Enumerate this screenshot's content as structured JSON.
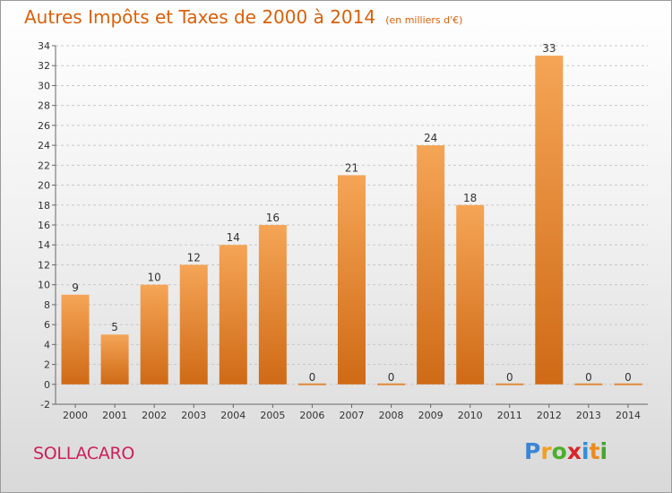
{
  "header": {
    "title": "Autres Impôts et Taxes de 2000 à 2014",
    "unit": "(en milliers d'€)"
  },
  "commune": "SOLLACARO",
  "logo": {
    "text": "Proxiti",
    "letters": [
      {
        "char": "P",
        "color": "#3a86d6"
      },
      {
        "char": "r",
        "color": "#f0a020"
      },
      {
        "char": "o",
        "color": "#4caf2a"
      },
      {
        "char": "x",
        "color": "#d8262a"
      },
      {
        "char": "i",
        "color": "#2f8fdc"
      },
      {
        "char": "t",
        "color": "#ec8a1d"
      },
      {
        "char": "i",
        "color": "#46a52e"
      }
    ]
  },
  "colors": {
    "title": "#d9600a",
    "commune": "#cc1f5b",
    "bar_top": "#f5a556",
    "bar_bottom": "#cf6a16",
    "zero_bar": "#e08a3c",
    "grid": "#c8c8c8"
  },
  "chart_data": {
    "type": "bar",
    "title": "Autres Impôts et Taxes de 2000 à 2014",
    "subtitle": "(en milliers d'€)",
    "categories": [
      "2000",
      "2001",
      "2002",
      "2003",
      "2004",
      "2005",
      "2006",
      "2007",
      "2008",
      "2009",
      "2010",
      "2011",
      "2012",
      "2013",
      "2014"
    ],
    "values": [
      9,
      5,
      10,
      12,
      14,
      16,
      0,
      21,
      0,
      24,
      18,
      0,
      33,
      0,
      0
    ],
    "ylim": [
      -2,
      34
    ],
    "yticks": [
      -2,
      0,
      2,
      4,
      6,
      8,
      10,
      12,
      14,
      16,
      18,
      20,
      22,
      24,
      26,
      28,
      30,
      32,
      34
    ],
    "grid": "horizontal dashed",
    "legend": "none",
    "xlabel": "",
    "ylabel": ""
  }
}
